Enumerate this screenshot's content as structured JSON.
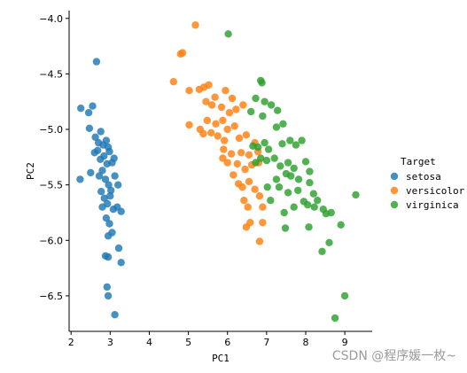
{
  "watermark": "CSDN @程序媛一枚~",
  "chart_data": {
    "type": "scatter",
    "xlabel": "PC1",
    "ylabel": "PC2",
    "xlim": [
      1.95,
      9.7
    ],
    "ylim": [
      -6.82,
      -3.93
    ],
    "xticks": [
      2,
      3,
      4,
      5,
      6,
      7,
      8,
      9
    ],
    "yticks": [
      -4.0,
      -4.5,
      -5.0,
      -5.5,
      -6.0,
      -6.5
    ],
    "xtick_labels": [
      "2",
      "3",
      "4",
      "5",
      "6",
      "7",
      "8",
      "9"
    ],
    "ytick_labels": [
      "−4.0",
      "−4.5",
      "−5.0",
      "−5.5",
      "−6.0",
      "−6.5"
    ],
    "grid": false,
    "legend": {
      "title": "Target",
      "placement": "right"
    },
    "series": [
      {
        "name": "setosa",
        "color": "#1f77b4",
        "points": [
          [
            2.25,
            -4.81
          ],
          [
            2.45,
            -4.85
          ],
          [
            2.55,
            -4.79
          ],
          [
            2.65,
            -4.39
          ],
          [
            2.23,
            -5.45
          ],
          [
            2.47,
            -4.99
          ],
          [
            2.62,
            -5.07
          ],
          [
            2.7,
            -5.12
          ],
          [
            2.76,
            -5.02
          ],
          [
            2.82,
            -5.14
          ],
          [
            2.9,
            -5.1
          ],
          [
            2.95,
            -5.16
          ],
          [
            2.6,
            -5.21
          ],
          [
            2.68,
            -5.19
          ],
          [
            2.75,
            -5.27
          ],
          [
            2.84,
            -5.24
          ],
          [
            2.92,
            -5.31
          ],
          [
            2.98,
            -5.2
          ],
          [
            3.05,
            -5.3
          ],
          [
            3.1,
            -5.26
          ],
          [
            2.5,
            -5.39
          ],
          [
            2.72,
            -5.42
          ],
          [
            2.8,
            -5.37
          ],
          [
            2.88,
            -5.45
          ],
          [
            2.96,
            -5.5
          ],
          [
            3.02,
            -5.55
          ],
          [
            3.12,
            -5.42
          ],
          [
            3.2,
            -5.5
          ],
          [
            2.77,
            -5.56
          ],
          [
            2.85,
            -5.62
          ],
          [
            2.93,
            -5.67
          ],
          [
            3.0,
            -5.6
          ],
          [
            3.08,
            -5.72
          ],
          [
            3.18,
            -5.7
          ],
          [
            3.28,
            -5.74
          ],
          [
            2.8,
            -5.7
          ],
          [
            2.9,
            -5.8
          ],
          [
            2.98,
            -5.85
          ],
          [
            3.05,
            -5.93
          ],
          [
            2.95,
            -5.96
          ],
          [
            2.88,
            -6.14
          ],
          [
            2.95,
            -6.15
          ],
          [
            3.22,
            -6.07
          ],
          [
            3.28,
            -6.2
          ],
          [
            2.92,
            -6.42
          ],
          [
            2.95,
            -6.5
          ],
          [
            3.12,
            -6.67
          ]
        ]
      },
      {
        "name": "versicolor",
        "color": "#ff7f0e",
        "points": [
          [
            5.18,
            -4.06
          ],
          [
            4.8,
            -4.32
          ],
          [
            4.85,
            -4.31
          ],
          [
            4.62,
            -4.57
          ],
          [
            5.02,
            -4.65
          ],
          [
            5.28,
            -4.64
          ],
          [
            5.4,
            -4.62
          ],
          [
            5.52,
            -4.6
          ],
          [
            5.68,
            -4.71
          ],
          [
            5.95,
            -4.65
          ],
          [
            6.12,
            -4.72
          ],
          [
            5.45,
            -4.75
          ],
          [
            5.6,
            -4.78
          ],
          [
            5.85,
            -4.8
          ],
          [
            6.05,
            -4.85
          ],
          [
            6.22,
            -4.82
          ],
          [
            6.4,
            -4.78
          ],
          [
            5.02,
            -4.96
          ],
          [
            5.3,
            -5.0
          ],
          [
            5.48,
            -4.92
          ],
          [
            5.7,
            -4.95
          ],
          [
            5.88,
            -4.92
          ],
          [
            6.0,
            -5.0
          ],
          [
            6.18,
            -4.97
          ],
          [
            5.38,
            -5.04
          ],
          [
            5.58,
            -5.03
          ],
          [
            5.75,
            -5.06
          ],
          [
            5.92,
            -5.1
          ],
          [
            6.3,
            -5.08
          ],
          [
            6.48,
            -5.05
          ],
          [
            6.7,
            -5.12
          ],
          [
            6.78,
            -5.2
          ],
          [
            5.9,
            -5.18
          ],
          [
            6.1,
            -5.22
          ],
          [
            6.35,
            -5.21
          ],
          [
            6.55,
            -5.23
          ],
          [
            5.88,
            -5.26
          ],
          [
            6.0,
            -5.3
          ],
          [
            6.25,
            -5.31
          ],
          [
            6.45,
            -5.36
          ],
          [
            6.62,
            -5.32
          ],
          [
            6.8,
            -5.3
          ],
          [
            6.15,
            -5.41
          ],
          [
            6.28,
            -5.49
          ],
          [
            6.38,
            -5.52
          ],
          [
            6.55,
            -5.47
          ],
          [
            6.7,
            -5.54
          ],
          [
            6.82,
            -5.6
          ],
          [
            6.42,
            -5.64
          ],
          [
            6.52,
            -5.7
          ],
          [
            6.9,
            -5.7
          ],
          [
            6.48,
            -5.88
          ],
          [
            6.58,
            -5.84
          ],
          [
            6.9,
            -5.84
          ],
          [
            6.82,
            -6.01
          ]
        ]
      },
      {
        "name": "virginica",
        "color": "#2ca02c",
        "points": [
          [
            6.02,
            -4.14
          ],
          [
            6.85,
            -4.56
          ],
          [
            6.88,
            -4.58
          ],
          [
            6.72,
            -4.72
          ],
          [
            6.95,
            -4.75
          ],
          [
            7.12,
            -4.78
          ],
          [
            6.6,
            -4.84
          ],
          [
            6.9,
            -4.88
          ],
          [
            7.28,
            -4.83
          ],
          [
            7.25,
            -4.98
          ],
          [
            7.42,
            -4.95
          ],
          [
            6.65,
            -5.15
          ],
          [
            6.78,
            -5.16
          ],
          [
            6.95,
            -5.12
          ],
          [
            7.05,
            -5.18
          ],
          [
            7.4,
            -5.13
          ],
          [
            7.6,
            -5.1
          ],
          [
            7.75,
            -5.14
          ],
          [
            7.9,
            -5.1
          ],
          [
            6.72,
            -5.3
          ],
          [
            6.85,
            -5.26
          ],
          [
            7.0,
            -5.28
          ],
          [
            7.2,
            -5.26
          ],
          [
            7.35,
            -5.33
          ],
          [
            7.55,
            -5.3
          ],
          [
            7.7,
            -5.35
          ],
          [
            8.0,
            -5.29
          ],
          [
            8.1,
            -5.38
          ],
          [
            7.25,
            -5.45
          ],
          [
            7.5,
            -5.4
          ],
          [
            7.62,
            -5.42
          ],
          [
            7.82,
            -5.45
          ],
          [
            8.1,
            -5.48
          ],
          [
            7.02,
            -5.52
          ],
          [
            7.32,
            -5.52
          ],
          [
            7.55,
            -5.57
          ],
          [
            7.8,
            -5.55
          ],
          [
            8.2,
            -5.58
          ],
          [
            7.1,
            -5.64
          ],
          [
            7.45,
            -5.75
          ],
          [
            7.7,
            -5.7
          ],
          [
            7.95,
            -5.65
          ],
          [
            8.05,
            -5.68
          ],
          [
            8.22,
            -5.7
          ],
          [
            8.3,
            -5.64
          ],
          [
            8.45,
            -5.72
          ],
          [
            7.48,
            -5.89
          ],
          [
            8.08,
            -5.88
          ],
          [
            8.52,
            -5.76
          ],
          [
            8.65,
            -5.75
          ],
          [
            9.28,
            -5.59
          ],
          [
            8.9,
            -5.86
          ],
          [
            8.6,
            -6.02
          ],
          [
            8.42,
            -6.1
          ],
          [
            9.0,
            -6.5
          ],
          [
            8.75,
            -6.7
          ]
        ]
      }
    ]
  }
}
